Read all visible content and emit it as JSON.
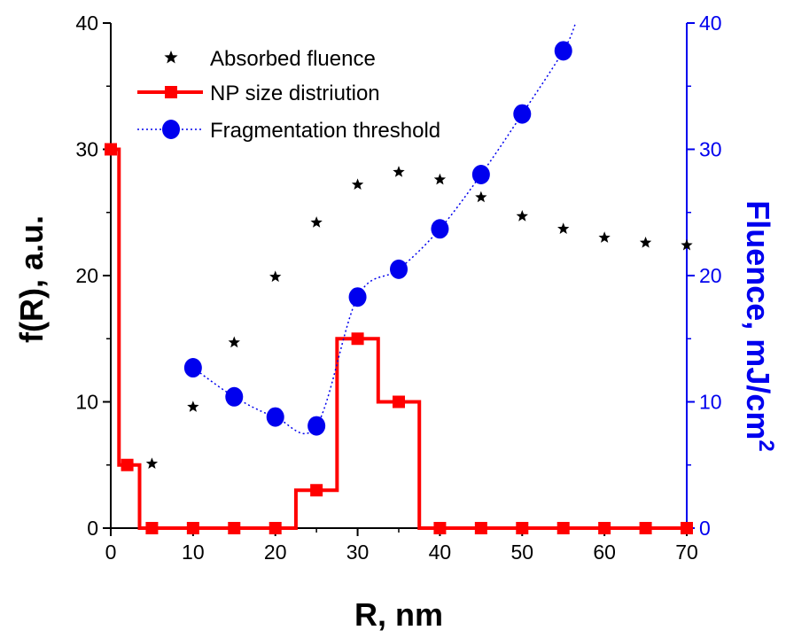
{
  "colors": {
    "size_distribution": "#ff0000",
    "fragmentation": "#0000ee",
    "absorbed": "#000000",
    "right_axis": "#0000ee"
  },
  "chart_data": {
    "type": "scatter",
    "xlabel": "R, nm",
    "ylabel": "f(R), a.u.",
    "y2label": "Fluence, mJ/cm",
    "y2label_sup": "2",
    "xlim": [
      0,
      70
    ],
    "ylim": [
      0,
      40
    ],
    "y2lim": [
      0,
      40
    ],
    "x_ticks": [
      0,
      10,
      20,
      30,
      40,
      50,
      60,
      70
    ],
    "y_ticks": [
      0,
      10,
      20,
      30,
      40
    ],
    "y2_ticks": [
      0,
      10,
      20,
      30,
      40
    ],
    "grid": false,
    "legend": "top-left",
    "series": [
      {
        "name": "Absorbed fluence",
        "axis": "right",
        "marker": "star",
        "x": [
          5,
          10,
          15,
          20,
          25,
          30,
          35,
          40,
          45,
          50,
          55,
          60,
          65,
          70
        ],
        "y": [
          5.1,
          9.6,
          14.7,
          19.9,
          24.2,
          27.2,
          28.2,
          27.6,
          26.2,
          24.7,
          23.7,
          23.0,
          22.6,
          22.4
        ]
      },
      {
        "name": "NP size distriution",
        "axis": "left",
        "marker": "square",
        "style": "step",
        "x": [
          0,
          2,
          5,
          10,
          15,
          20,
          25,
          30,
          35,
          40,
          45,
          50,
          55,
          60,
          65,
          70
        ],
        "y": [
          30,
          5,
          0,
          0,
          0,
          0,
          3,
          15,
          10,
          0,
          0,
          0,
          0,
          0,
          0,
          0
        ]
      },
      {
        "name": "Fragmentation threshold",
        "axis": "right",
        "marker": "circle",
        "style": "dotted-fit",
        "x": [
          10,
          15,
          20,
          25,
          30,
          35,
          40,
          45,
          50,
          55
        ],
        "y": [
          12.7,
          10.4,
          8.8,
          8.1,
          18.3,
          20.5,
          23.7,
          28.0,
          32.8,
          37.8
        ]
      }
    ]
  }
}
